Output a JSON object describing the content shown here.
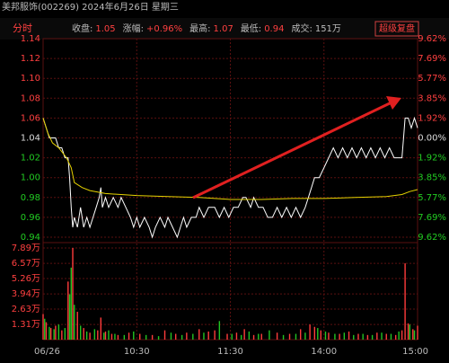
{
  "header": {
    "title": "美邦服饰(002269) 2024年6月26日 星期三",
    "mode": "分时",
    "stats": [
      {
        "label": "收盘:",
        "value": "1.05"
      },
      {
        "label": "涨幅:",
        "value": "+0.96%"
      },
      {
        "label": "最高:",
        "value": "1.07"
      },
      {
        "label": "最低:",
        "value": "0.94"
      },
      {
        "label": "成交:",
        "value": "151万"
      }
    ],
    "button": "超级复盘"
  },
  "chart_data": [
    {
      "type": "line",
      "xlim": [
        0,
        240
      ],
      "ylim": [
        0.94,
        1.14
      ],
      "yticks": [
        0.94,
        0.96,
        0.98,
        {
          "value": 1.0,
          "label": "1.00"
        },
        1.02,
        1.04,
        1.06,
        1.08,
        {
          "value": 1.1,
          "label": "1.10"
        },
        1.12,
        1.14
      ],
      "y2lim": [
        -9.62,
        9.62
      ],
      "y2ticks": [
        {
          "value": -9.62,
          "label": "9.62%"
        },
        {
          "value": -7.69,
          "label": "7.69%"
        },
        {
          "value": -5.77,
          "label": "5.77%"
        },
        {
          "value": -3.85,
          "label": "3.85%"
        },
        {
          "value": -1.92,
          "label": "1.92%"
        },
        {
          "value": 0,
          "label": "0.00%"
        },
        {
          "value": 1.92,
          "label": "1.92%"
        },
        {
          "value": 3.85,
          "label": "3.85%"
        },
        {
          "value": 5.77,
          "label": "5.77%"
        },
        {
          "value": 7.69,
          "label": "7.69%"
        },
        {
          "value": 9.62,
          "label": "9.62%"
        }
      ],
      "grid": true,
      "series": [
        {
          "color": "#ffffff",
          "x": [
            0,
            2,
            4,
            6,
            8,
            10,
            12,
            14,
            16,
            17,
            18,
            19,
            20,
            22,
            24,
            26,
            28,
            30,
            32,
            34,
            36,
            37,
            38,
            40,
            42,
            45,
            48,
            50,
            53,
            56,
            58,
            60,
            62,
            65,
            68,
            70,
            72,
            75,
            78,
            80,
            83,
            86,
            88,
            90,
            92,
            95,
            98,
            100,
            103,
            106,
            110,
            113,
            116,
            119,
            122,
            125,
            128,
            130,
            133,
            135,
            138,
            141,
            144,
            147,
            150,
            153,
            156,
            159,
            162,
            165,
            168,
            170,
            172,
            174,
            177,
            180,
            183,
            186,
            189,
            192,
            195,
            198,
            201,
            204,
            207,
            210,
            213,
            216,
            219,
            222,
            225,
            228,
            230,
            231,
            232,
            234,
            236,
            238,
            240
          ],
          "values": [
            1.06,
            1.05,
            1.04,
            1.04,
            1.04,
            1.03,
            1.03,
            1.02,
            1.02,
            1.0,
            0.97,
            0.95,
            0.96,
            0.95,
            0.97,
            0.95,
            0.96,
            0.95,
            0.96,
            0.97,
            0.98,
            0.99,
            0.97,
            0.98,
            0.97,
            0.98,
            0.97,
            0.98,
            0.97,
            0.96,
            0.95,
            0.96,
            0.95,
            0.96,
            0.95,
            0.94,
            0.95,
            0.96,
            0.95,
            0.96,
            0.95,
            0.94,
            0.95,
            0.96,
            0.95,
            0.96,
            0.96,
            0.97,
            0.96,
            0.97,
            0.97,
            0.96,
            0.97,
            0.96,
            0.97,
            0.97,
            0.98,
            0.98,
            0.97,
            0.98,
            0.97,
            0.97,
            0.96,
            0.96,
            0.97,
            0.96,
            0.97,
            0.96,
            0.97,
            0.96,
            0.97,
            0.98,
            0.99,
            1.0,
            1.0,
            1.01,
            1.02,
            1.03,
            1.02,
            1.03,
            1.02,
            1.03,
            1.02,
            1.03,
            1.02,
            1.03,
            1.02,
            1.03,
            1.02,
            1.03,
            1.02,
            1.02,
            1.02,
            1.04,
            1.06,
            1.06,
            1.05,
            1.06,
            1.05
          ]
        },
        {
          "color": "#e6d200",
          "x": [
            0,
            3,
            6,
            10,
            15,
            18,
            20,
            25,
            30,
            40,
            60,
            80,
            100,
            120,
            140,
            160,
            180,
            200,
            220,
            230,
            235,
            240
          ],
          "values": [
            1.06,
            1.045,
            1.035,
            1.03,
            1.02,
            1.01,
            0.995,
            0.99,
            0.987,
            0.984,
            0.982,
            0.981,
            0.98,
            0.978,
            0.978,
            0.979,
            0.979,
            0.98,
            0.981,
            0.983,
            0.986,
            0.988
          ]
        }
      ]
    },
    {
      "type": "bar",
      "xlim": [
        0,
        240
      ],
      "xticks": [
        {
          "value": 0,
          "label": "06/26"
        },
        {
          "value": 60,
          "label": "10:30"
        },
        {
          "value": 120,
          "label": "11:30"
        },
        {
          "value": 180,
          "label": "14:00"
        },
        {
          "value": 240,
          "label": "15:00"
        }
      ],
      "ylim": [
        0,
        7.89
      ],
      "yticks": [
        {
          "value": 1.31,
          "label": "1.31万"
        },
        {
          "value": 2.63,
          "label": "2.63万"
        },
        {
          "value": 3.94,
          "label": "3.94万"
        },
        {
          "value": 5.26,
          "label": "5.26万"
        },
        {
          "value": 6.57,
          "label": "6.57万"
        },
        {
          "value": 7.89,
          "label": "7.89万"
        }
      ],
      "series": [
        {
          "color": "#ff3b3b",
          "x": [
            0,
            2,
            5,
            8,
            12,
            16,
            19,
            22,
            26,
            30,
            35,
            37,
            40,
            44,
            48,
            55,
            62,
            70,
            78,
            85,
            92,
            100,
            106,
            110,
            118,
            124,
            129,
            135,
            140,
            150,
            158,
            165,
            171,
            174,
            178,
            183,
            190,
            196,
            202,
            208,
            214,
            220,
            226,
            230,
            232,
            234,
            237,
            240
          ],
          "values": [
            2.2,
            1.5,
            1.0,
            1.2,
            0.8,
            5.0,
            7.89,
            2.4,
            1.0,
            0.6,
            0.8,
            1.9,
            0.7,
            0.5,
            0.4,
            0.6,
            0.5,
            0.4,
            0.8,
            0.5,
            0.6,
            0.9,
            0.7,
            0.8,
            0.5,
            0.6,
            0.9,
            0.4,
            0.5,
            0.6,
            0.5,
            0.9,
            1.3,
            1.1,
            0.8,
            0.6,
            0.5,
            0.7,
            0.5,
            0.4,
            0.6,
            0.5,
            0.4,
            0.8,
            6.57,
            1.4,
            0.9,
            1.2
          ]
        },
        {
          "color": "#22c422",
          "x": [
            1,
            4,
            7,
            10,
            14,
            17,
            18,
            20,
            24,
            28,
            33,
            39,
            42,
            46,
            52,
            58,
            66,
            74,
            82,
            89,
            96,
            103,
            113,
            121,
            127,
            132,
            138,
            145,
            154,
            162,
            168,
            176,
            181,
            187,
            193,
            199,
            205,
            211,
            217,
            223,
            228,
            235,
            238
          ],
          "values": [
            1.8,
            1.1,
            0.9,
            1.3,
            1.0,
            3.9,
            6.2,
            3.0,
            1.2,
            0.7,
            0.9,
            0.6,
            0.8,
            0.5,
            0.4,
            0.7,
            0.4,
            0.3,
            0.6,
            0.4,
            0.5,
            0.6,
            1.6,
            0.5,
            0.4,
            0.7,
            0.5,
            0.8,
            0.4,
            0.5,
            0.6,
            1.0,
            0.7,
            0.5,
            0.6,
            0.4,
            0.5,
            0.4,
            0.6,
            0.5,
            0.7,
            1.3,
            0.8
          ]
        }
      ]
    }
  ]
}
